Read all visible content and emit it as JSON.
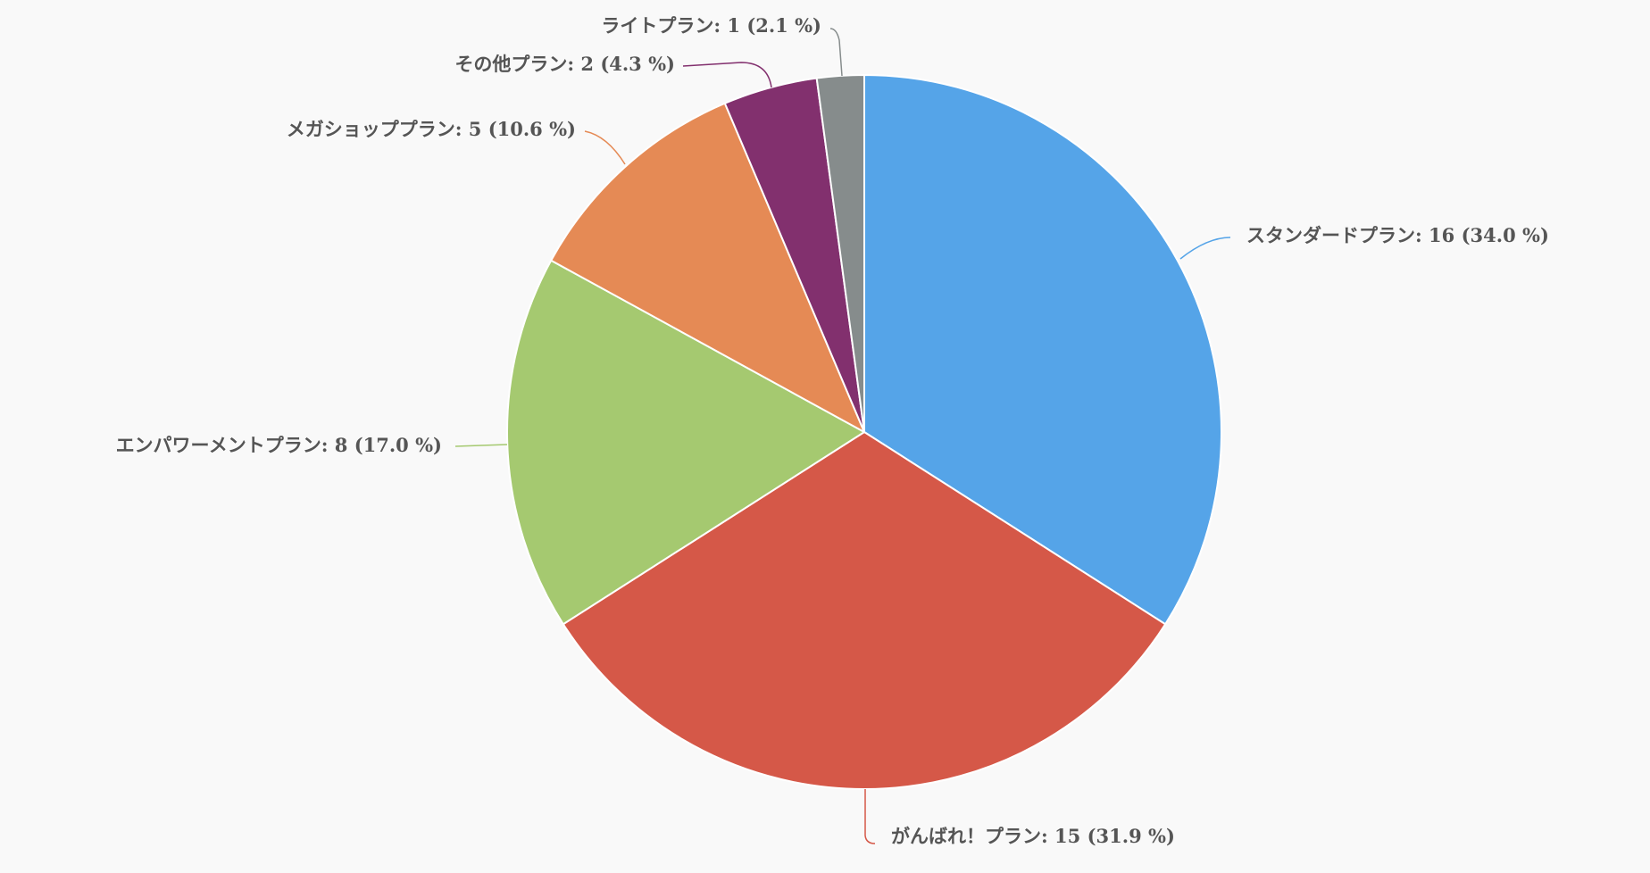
{
  "chart_data": {
    "type": "pie",
    "title": "",
    "start_angle_deg": 0,
    "direction": "clockwise",
    "slices": [
      {
        "name": "スタンダードプラン",
        "value": 16,
        "percent": "34.0 %",
        "color": "#55a4e8"
      },
      {
        "name": "がんばれ！プラン",
        "value": 15,
        "percent": "31.9 %",
        "color": "#d55848"
      },
      {
        "name": "エンパワーメントプラン",
        "value": 8,
        "percent": "17.0 %",
        "color": "#a5c970"
      },
      {
        "name": "メガショッププラン",
        "value": 5,
        "percent": "10.6 %",
        "color": "#e58a55"
      },
      {
        "name": "その他プラン",
        "value": 2,
        "percent": "4.3 %",
        "color": "#82306e"
      },
      {
        "name": "ライトプラン",
        "value": 1,
        "percent": "2.1 %",
        "color": "#868c8c"
      }
    ],
    "labels": [
      "スタンダードプラン: 16 (34.0 %)",
      "がんばれ！プラン: 15 (31.9 %)",
      "エンパワーメントプラン: 8 (17.0 %)",
      "メガショッププラン: 5 (10.6 %)",
      "その他プラン: 2 (4.3 %)",
      "ライトプラン: 1 (2.1 %)"
    ]
  }
}
